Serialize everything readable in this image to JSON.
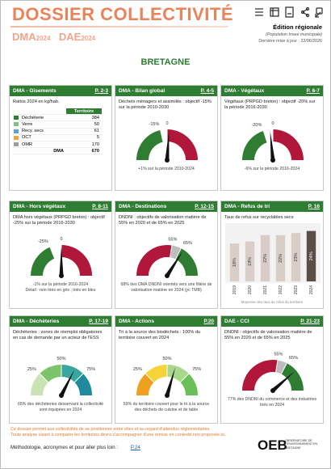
{
  "header": {
    "title": "DOSSIER COLLECTIVITÉ",
    "subtitle_1": "DMA",
    "subtitle_1_year": "2024",
    "subtitle_2": "DAE",
    "subtitle_2_year": "2024",
    "edition": "Édition régionale",
    "population_note": "(Population Insee municipale)",
    "update": "Dernière mise à jour : 22/06/2026"
  },
  "region": "BRETAGNE",
  "cards": [
    {
      "title": "DMA - Gisements",
      "page": "P. 2-3",
      "text": "Ratios 2024 en kg/hab.",
      "table": {
        "header": "Territoire",
        "rows": [
          [
            "Déchèterie",
            384
          ],
          [
            "Verre",
            50
          ],
          [
            "Recy. secs",
            61
          ],
          [
            "OCT",
            5
          ],
          [
            "OMR",
            170
          ],
          [
            "DMA",
            670
          ]
        ]
      }
    },
    {
      "title": "DMA - Bilan global",
      "page": "P. 4-5",
      "text": "Déchets ménagers et assimilés : objectif -15% sur la période 2010-2030",
      "gauge_labels": [
        "-15%",
        "0"
      ],
      "caption": "+1% sur la période 2010-2024"
    },
    {
      "title": "DMA - Végétaux",
      "page": "P. 6-7",
      "text": "Végétaux (PRPGD breton) : objectif -20% sur la période 2016-2030",
      "gauge_labels": [
        "-20%",
        "0"
      ],
      "caption": "-6% sur la période 2016-2024"
    },
    {
      "title": "DMA - Hors végétaux",
      "page": "P. 8-11",
      "text": "DMA hors végétaux (PRPGD breton) : objectif -25% sur la période 2016-2030",
      "gauge_labels": [
        "-25%",
        "0"
      ],
      "caption": "-1% sur la période 2016-2024",
      "detail": "Détail : non triés en gris ; triés en bleu"
    },
    {
      "title": "DMA - Destinations",
      "page": "P. 12-15",
      "text": "DNDNI : objectifs de valorisation matière de 55% en 2020 et de 65% en 2025",
      "gauge_labels": [
        "55%",
        "65%"
      ],
      "caption": "68% des DMA DNDNI orientés vers une filière de valorisation matière en 2024 (yc TMB)"
    },
    {
      "title": "DMA - Refus de tri",
      "page": "P. 16",
      "text": "Taux de refus sur recyclables secs",
      "chart": {
        "categories": [
          "2019",
          "2020",
          "2021",
          "2022",
          "2023",
          "2024"
        ],
        "values": [
          18,
          19,
          22,
          22,
          23,
          24
        ],
        "value_labels": [
          "18%",
          "19%",
          "22%",
          "22%",
          "23%",
          "24%"
        ]
      },
      "caption": "Moyenne des taux de refus du territoire"
    },
    {
      "title": "DMA - Déchèteries",
      "page": "P. 17-19",
      "text": "Déchèteries : zones de réemploi obligatoires en cas de demande par un acteur de l'ESS",
      "gauge_labels": [
        "25%",
        "50%",
        "75%"
      ],
      "caption": "65% des déchèteries desservant la collectivité sont équipées en 2024"
    },
    {
      "title": "DMA - Actions",
      "page": "P.20",
      "text": "Tri à la source des biodéchets : 100% du territoire couvert en 2024",
      "gauge_labels": [
        "25%",
        "50%",
        "75%"
      ],
      "caption": "59% du territoire couvert pour le tri à la source des déchets de cuisine et de table"
    },
    {
      "title": "DAE - CCI",
      "page": "P. 21-23",
      "text": "DNDNI : objectifs de valorisation matière de 55% en 2020 et de 65% en 2025",
      "gauge_labels": [
        "55%",
        "65%"
      ],
      "caption": "77% des DNDNI du commerce et des industries triés en 2024"
    }
  ],
  "footer": {
    "note_1": "Ce dossier permet aux collectivités de se positionner entre elles et au regard d'attendus réglementaires.",
    "note_2": "Toute analyse visant à comparer les territoires devra s'accompagner d'une remise en contexte non proposée ici.",
    "link_text": "Méthodologie, acronymes et pour aller plus loin :",
    "link_page": "P.24",
    "logo": "OEB",
    "logo_text": "OBSERVATOIRE DE L'ENVIRONNEMENT EN BRETAGNE"
  }
}
